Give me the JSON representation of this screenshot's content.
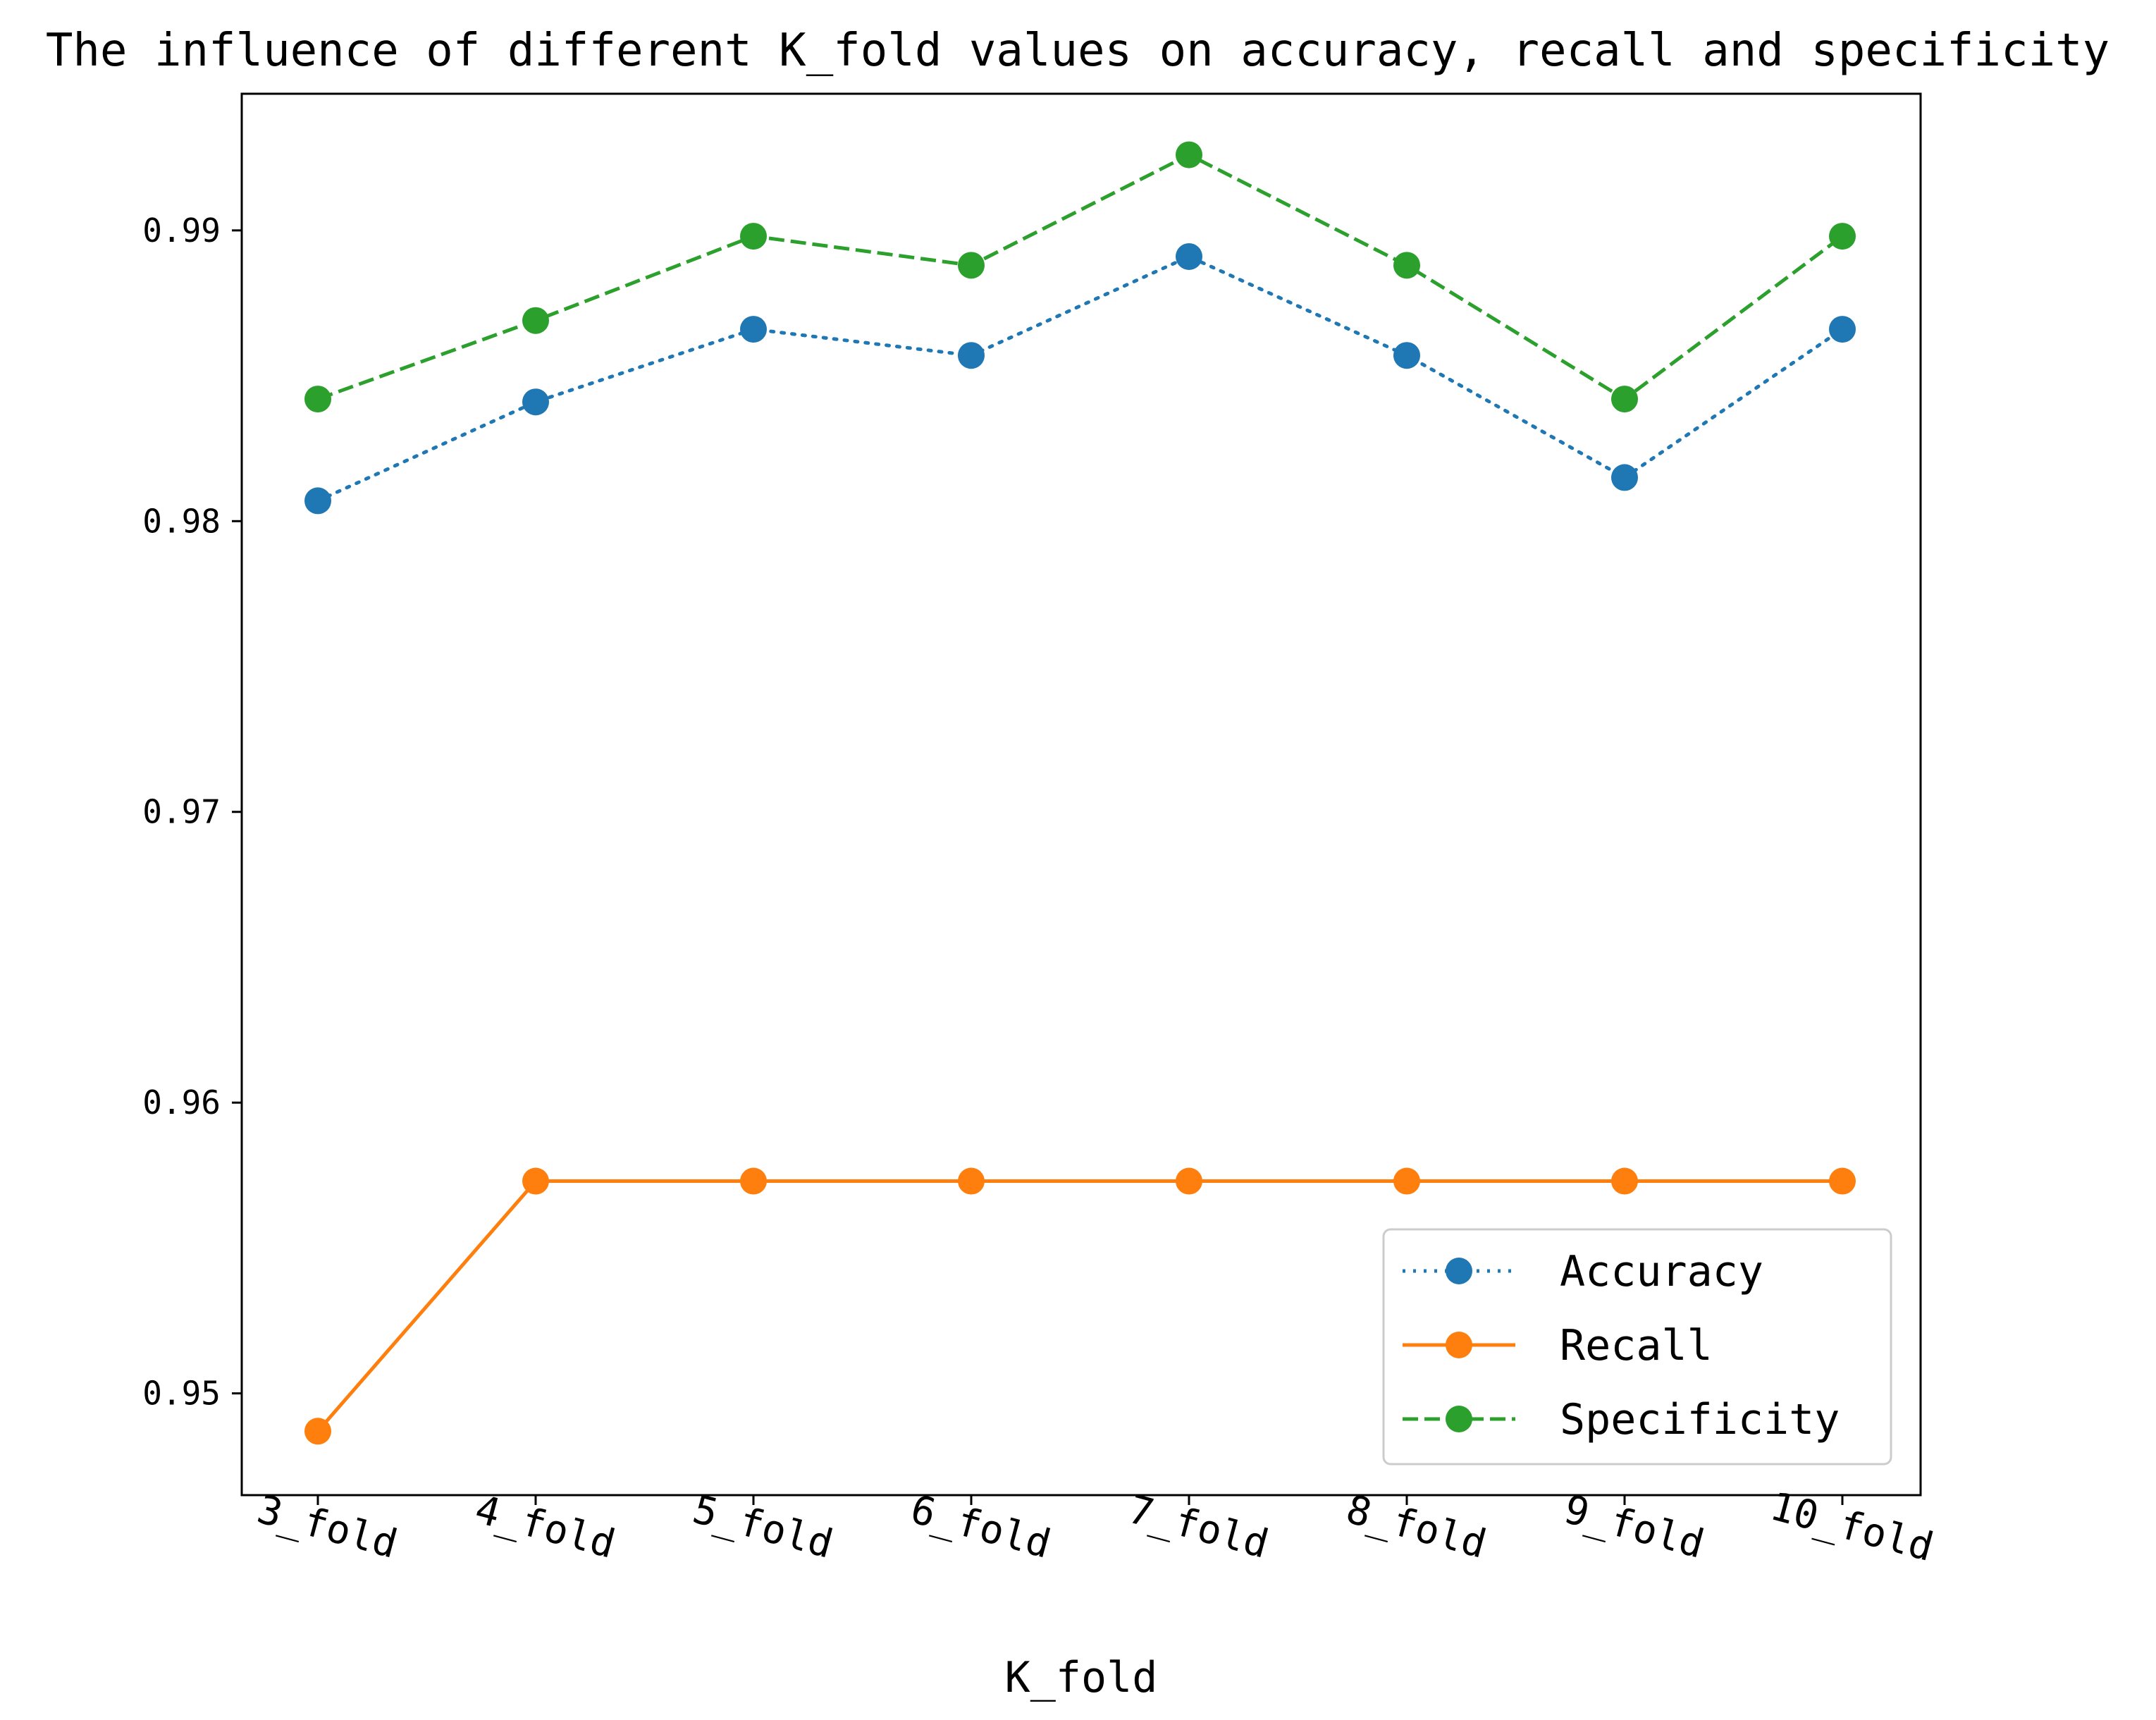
{
  "chart_data": {
    "type": "line",
    "title": "The influence of different K_fold values on accuracy, recall and specificity",
    "xlabel": "K_fold",
    "ylabel": "",
    "categories": [
      "3_fold",
      "4_fold",
      "5_fold",
      "6_fold",
      "7_fold",
      "8_fold",
      "9_fold",
      "10_fold"
    ],
    "ylim": [
      0.9465,
      0.9947
    ],
    "yticks": [
      0.95,
      0.96,
      0.97,
      0.98,
      0.99
    ],
    "ytick_labels": [
      "0.95",
      "0.96",
      "0.97",
      "0.98",
      "0.99"
    ],
    "grid": false,
    "legend_position": "lower-right",
    "series": [
      {
        "name": "Accuracy",
        "color": "#1f77b4",
        "linestyle": "dotted",
        "marker": "circle",
        "values": [
          0.9807,
          0.9841,
          0.9866,
          0.9857,
          0.9891,
          0.9857,
          0.9815,
          0.9866
        ]
      },
      {
        "name": "Recall",
        "color": "#ff7f0e",
        "linestyle": "solid",
        "marker": "circle",
        "values": [
          0.9487,
          0.9573,
          0.9573,
          0.9573,
          0.9573,
          0.9573,
          0.9573,
          0.9573
        ]
      },
      {
        "name": "Specificity",
        "color": "#2ca02c",
        "linestyle": "dashed",
        "marker": "circle",
        "values": [
          0.9842,
          0.9869,
          0.9898,
          0.9888,
          0.9926,
          0.9888,
          0.9842,
          0.9898
        ]
      }
    ]
  }
}
